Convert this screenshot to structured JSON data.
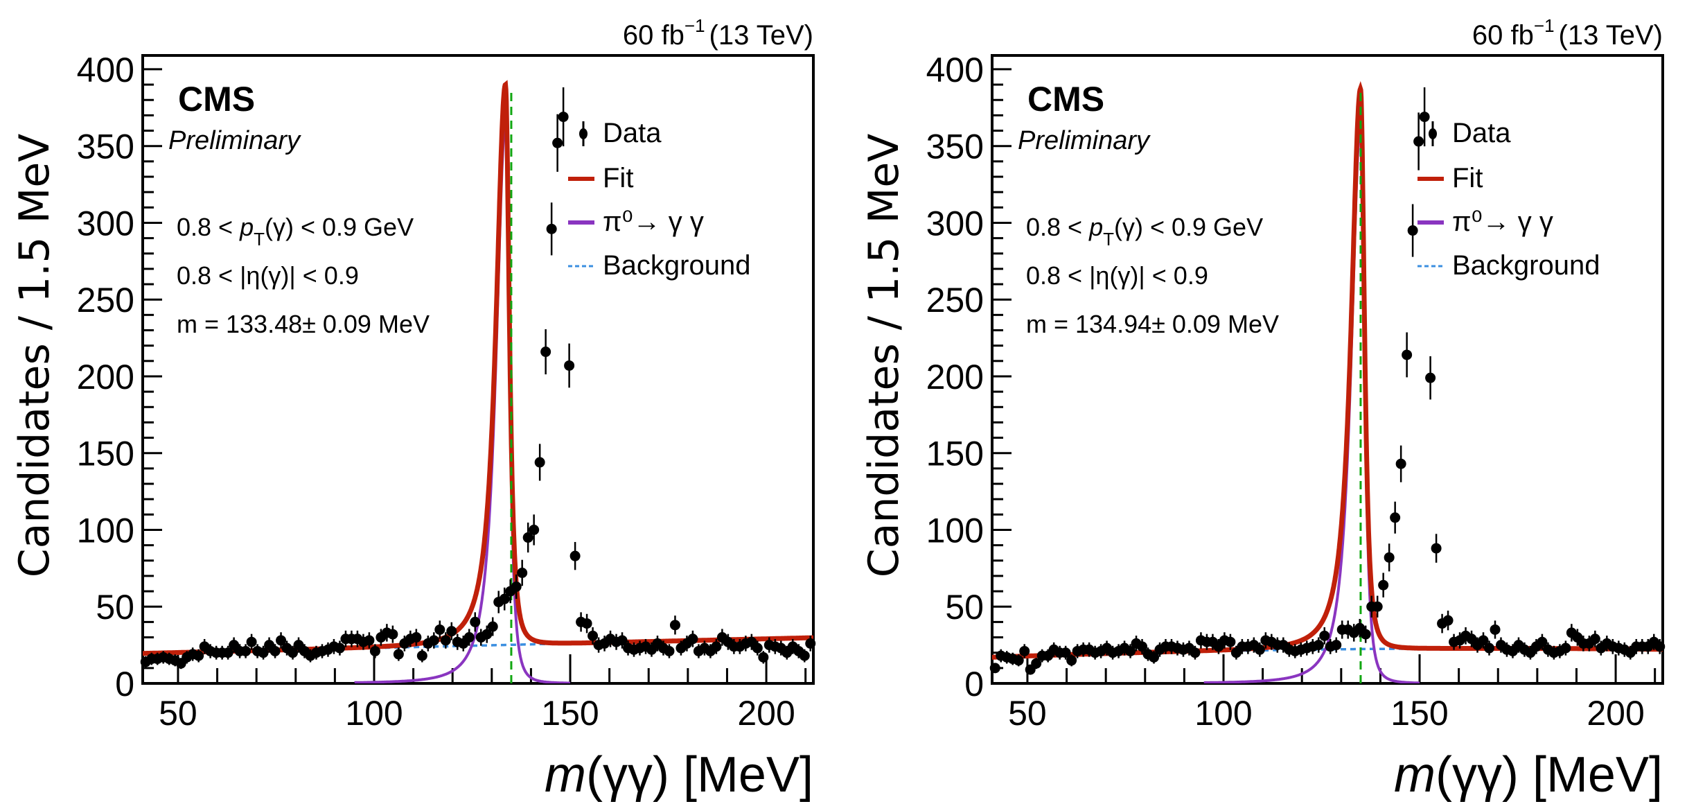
{
  "chart_data": [
    {
      "type": "scatter",
      "panel": "left",
      "title": "",
      "lumi_label": "60 fb",
      "lumi_exp": "−1",
      "lumi_energy": "(13 TeV)",
      "cms_label": "CMS",
      "preliminary_label": "Preliminary",
      "info_lines": {
        "pt_prefix": "0.8 < ",
        "pt_var": "p",
        "pt_sub": "T",
        "pt_suffix": "(γ) < 0.9 GeV",
        "eta": "0.8 < |η(γ)| < 0.9",
        "mass": "m = 133.48± 0.09 MeV"
      },
      "xlabel_italic": "m",
      "xlabel_rest": "(γγ) [MeV]",
      "ylabel": "Candidates / 1.5 MeV",
      "xlim": [
        41,
        212
      ],
      "ylim": [
        0,
        409
      ],
      "xticks": [
        50,
        100,
        150,
        200
      ],
      "yticks": [
        0,
        50,
        100,
        150,
        200,
        250,
        300,
        350,
        400
      ],
      "reference_mass": 134.97,
      "legend": {
        "placement": "top-right",
        "entries": [
          {
            "label": "Data",
            "style": "marker",
            "color": "#000000"
          },
          {
            "label": "Fit",
            "style": "line",
            "color": "#c0200a"
          },
          {
            "label": "π⁰→ γ γ",
            "style": "line",
            "color": "#8a35c0"
          },
          {
            "label": "Background",
            "style": "dashed",
            "color": "#3b8fe0"
          }
        ]
      },
      "colors": {
        "fit": "#c0200a",
        "signal": "#8a35c0",
        "background": "#3b8fe0",
        "reference": "#11a611",
        "data": "#000000"
      },
      "bin_width": 1.5,
      "x_start": 41.75,
      "values": [
        14,
        16,
        16,
        17,
        16,
        15,
        13,
        17,
        19,
        18,
        24,
        21,
        20,
        20,
        20,
        25,
        21,
        21,
        27,
        21,
        20,
        25,
        21,
        28,
        23,
        20,
        25,
        21,
        18,
        20,
        21,
        22,
        24,
        23,
        29,
        29,
        29,
        27,
        28,
        21,
        30,
        33,
        32,
        19,
        26,
        29,
        30,
        18,
        26,
        28,
        35,
        28,
        34,
        27,
        26,
        30,
        40,
        30,
        32,
        37,
        53,
        55,
        60,
        63,
        72,
        95,
        100,
        144,
        216,
        296,
        352,
        369,
        207,
        83,
        40,
        39,
        31,
        25,
        26,
        29,
        27,
        28,
        23,
        22,
        23,
        24,
        22,
        26,
        23,
        21,
        38,
        23,
        26,
        29,
        21,
        23,
        21,
        24,
        30,
        27,
        24,
        24,
        26,
        27,
        23,
        17,
        25,
        24,
        23,
        20,
        24,
        21,
        18,
        26,
        30,
        20,
        26,
        24,
        19,
        16,
        22,
        26,
        24,
        27,
        33,
        22,
        23,
        22,
        23,
        34
      ],
      "fit_model": {
        "bkg_poly": [
          19.5,
          0.06
        ],
        "bkg_ref_x": 41,
        "signal_peak": 365,
        "signal_mean": 133.48,
        "signal_sigma_left": 3.4,
        "signal_sigma_right": 1.6,
        "signal_tail_left": 1.35,
        "signal_tail_right": 1.6,
        "signal_range": [
          95,
          150
        ],
        "bkg_range": [
          41,
          212
        ]
      }
    },
    {
      "type": "scatter",
      "panel": "right",
      "title": "",
      "lumi_label": "60 fb",
      "lumi_exp": "−1",
      "lumi_energy": "(13 TeV)",
      "cms_label": "CMS",
      "preliminary_label": "Preliminary",
      "info_lines": {
        "pt_prefix": "0.8 < ",
        "pt_var": "p",
        "pt_sub": "T",
        "pt_suffix": "(γ) < 0.9 GeV",
        "eta": "0.8 < |η(γ)| < 0.9",
        "mass": "m = 134.94± 0.09 MeV"
      },
      "xlabel_italic": "m",
      "xlabel_rest": "(γγ) [MeV]",
      "ylabel": "Candidates / 1.5 MeV",
      "xlim": [
        41,
        212
      ],
      "ylim": [
        0,
        409
      ],
      "xticks": [
        50,
        100,
        150,
        200
      ],
      "yticks": [
        0,
        50,
        100,
        150,
        200,
        250,
        300,
        350,
        400
      ],
      "reference_mass": 134.97,
      "legend": {
        "placement": "top-right",
        "entries": [
          {
            "label": "Data",
            "style": "marker",
            "color": "#000000"
          },
          {
            "label": "Fit",
            "style": "line",
            "color": "#c0200a"
          },
          {
            "label": "π⁰→ γ γ",
            "style": "line",
            "color": "#8a35c0"
          },
          {
            "label": "Background",
            "style": "dashed",
            "color": "#3b8fe0"
          }
        ]
      },
      "colors": {
        "fit": "#c0200a",
        "signal": "#8a35c0",
        "background": "#3b8fe0",
        "reference": "#11a611",
        "data": "#000000"
      },
      "bin_width": 1.5,
      "x_start": 41.75,
      "values": [
        10,
        18,
        17,
        16,
        15,
        21,
        9,
        13,
        18,
        18,
        22,
        20,
        20,
        15,
        21,
        22,
        22,
        20,
        21,
        23,
        20,
        21,
        23,
        21,
        26,
        24,
        19,
        17,
        22,
        24,
        24,
        23,
        22,
        23,
        20,
        28,
        27,
        27,
        24,
        28,
        27,
        20,
        24,
        24,
        25,
        22,
        28,
        27,
        25,
        25,
        22,
        21,
        22,
        23,
        24,
        25,
        31,
        24,
        25,
        35,
        35,
        33,
        36,
        32,
        50,
        50,
        64,
        82,
        108,
        143,
        214,
        295,
        353,
        369,
        199,
        88,
        39,
        41,
        27,
        28,
        31,
        29,
        25,
        28,
        23,
        35,
        25,
        22,
        21,
        25,
        22,
        20,
        24,
        27,
        22,
        20,
        21,
        23,
        33,
        30,
        26,
        26,
        29,
        23,
        26,
        24,
        23,
        22,
        20,
        24,
        24,
        24,
        27,
        24,
        23,
        20,
        22,
        24,
        20,
        26,
        29,
        26,
        23,
        17,
        23,
        26,
        27,
        17,
        14,
        25,
        25,
        30,
        34,
        22,
        26,
        28,
        21
      ],
      "fit_model": {
        "bkg_poly": [
          17,
          0.09,
          -0.00035
        ],
        "bkg_ref_x": 41,
        "signal_peak": 365,
        "signal_mean": 134.94,
        "signal_sigma_left": 3.4,
        "signal_sigma_right": 1.6,
        "signal_tail_left": 1.35,
        "signal_tail_right": 1.6,
        "signal_range": [
          95,
          150
        ],
        "bkg_range": [
          41,
          212
        ]
      }
    }
  ]
}
